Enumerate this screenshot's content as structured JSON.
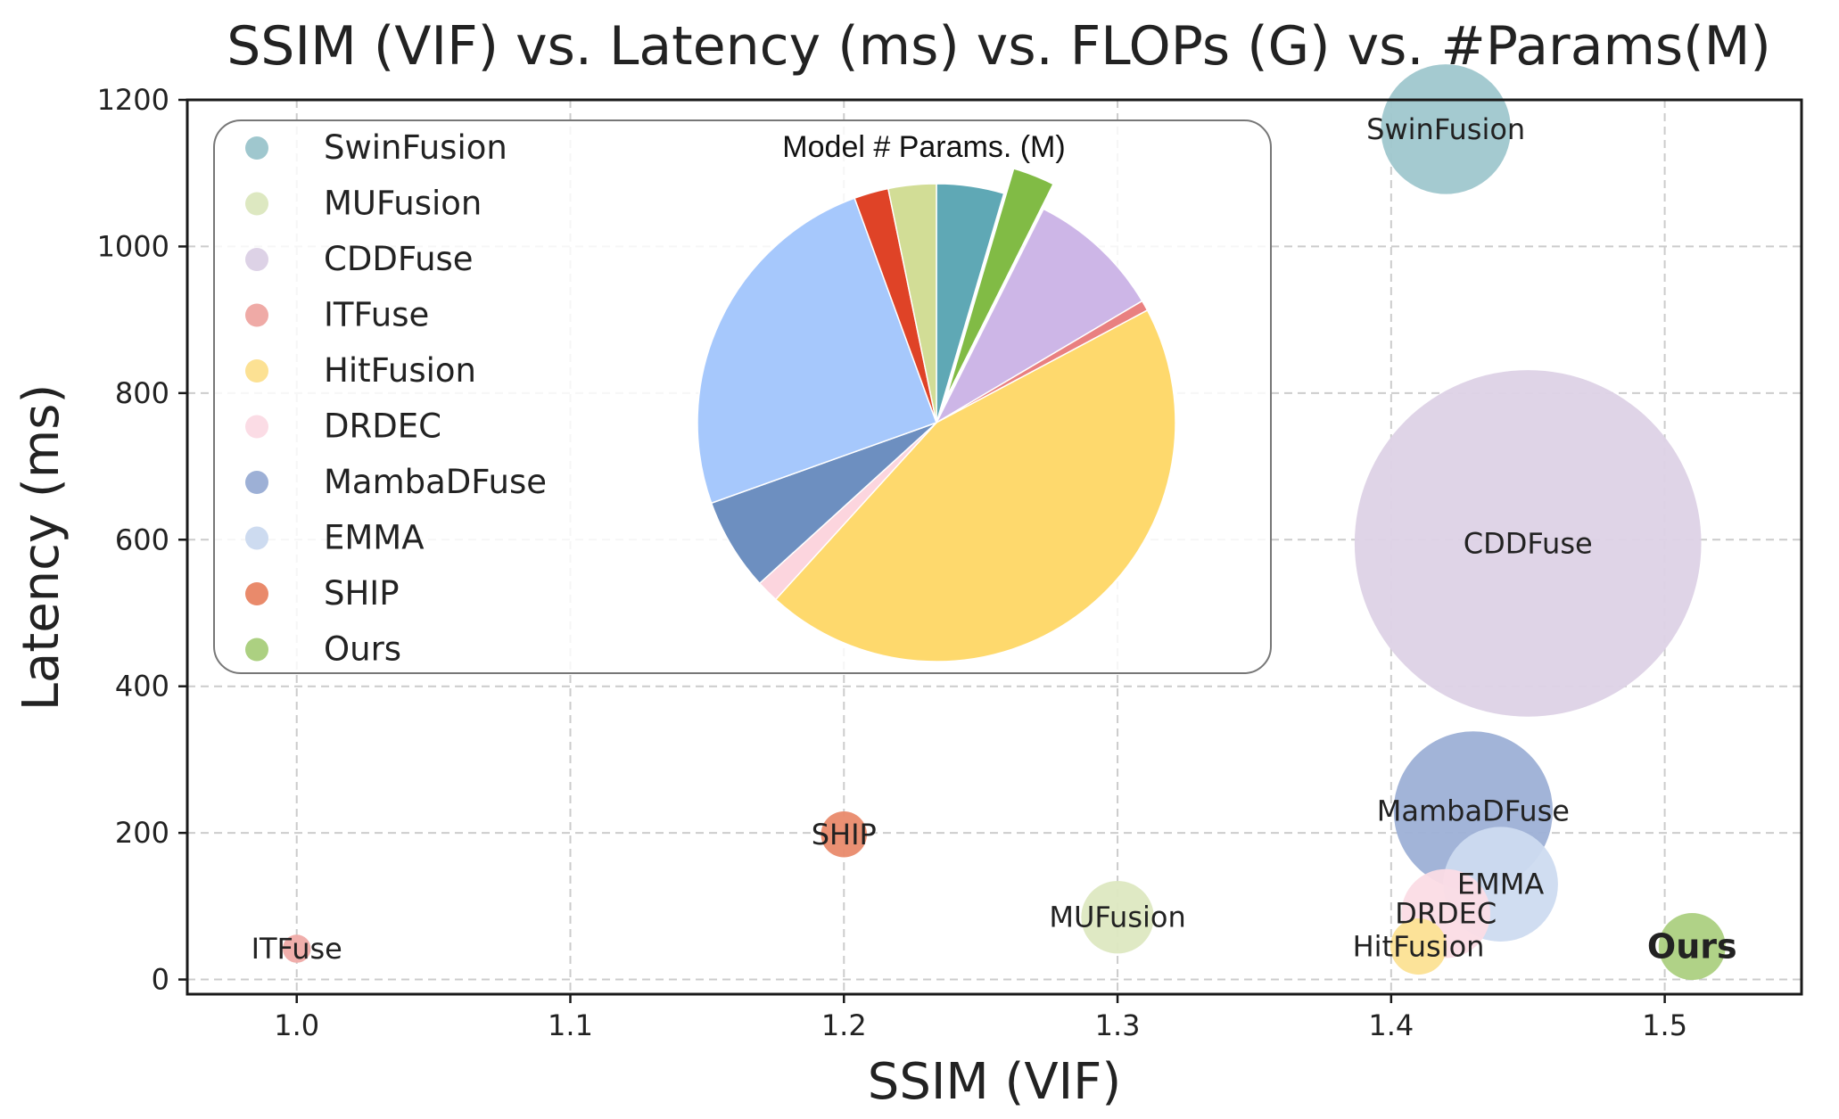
{
  "chart_data": {
    "type": "scatter",
    "title": "SSIM (VIF) vs. Latency (ms) vs. FLOPs (G) vs. #Params(M)",
    "xlabel": "SSIM (VIF)",
    "ylabel": "Latency (ms)",
    "xlim": [
      0.96,
      1.55
    ],
    "ylim": [
      -20,
      1200
    ],
    "xticks": [
      "1.0",
      "1.1",
      "1.2",
      "1.3",
      "1.4",
      "1.5"
    ],
    "xtick_values": [
      1.0,
      1.1,
      1.2,
      1.3,
      1.4,
      1.5
    ],
    "yticks": [
      "0",
      "200",
      "400",
      "600",
      "800",
      "1000",
      "1200"
    ],
    "ytick_values": [
      0,
      200,
      400,
      600,
      800,
      1000,
      1200
    ],
    "grid": true,
    "legend_position": "upper-left",
    "series": [
      {
        "name": "SwinFusion",
        "label": "SwinFusion",
        "x": 1.42,
        "y": 1160,
        "flops_g": 64,
        "color": "#9fc7ce",
        "label_color": "#222222"
      },
      {
        "name": "MUFusion",
        "label": "MUFusion",
        "x": 1.3,
        "y": 85,
        "flops_g": 20,
        "color": "#dde8c1",
        "label_color": "#222222"
      },
      {
        "name": "CDDFuse",
        "label": "CDDFuse",
        "x": 1.45,
        "y": 595,
        "flops_g": 456,
        "color": "#ddd2e6",
        "label_color": "#222222"
      },
      {
        "name": "ITFuse",
        "label": "ITFuse",
        "x": 1.0,
        "y": 42,
        "flops_g": 3,
        "color": "#efaaa6",
        "label_color": "#222222"
      },
      {
        "name": "HitFusion",
        "label": "HitFusion",
        "x": 1.41,
        "y": 45,
        "flops_g": 12,
        "color": "#fce193",
        "label_color": "#222222"
      },
      {
        "name": "DRDEC",
        "label": "DRDEC",
        "x": 1.42,
        "y": 90,
        "flops_g": 30,
        "color": "#fbdce5",
        "label_color": "#222222"
      },
      {
        "name": "MambaDFuse",
        "label": "MambaDFuse",
        "x": 1.43,
        "y": 230,
        "flops_g": 96,
        "color": "#9db0d6",
        "label_color": "#222222"
      },
      {
        "name": "EMMA",
        "label": "EMMA",
        "x": 1.44,
        "y": 130,
        "flops_g": 50,
        "color": "#cddbf0",
        "label_color": "#222222"
      },
      {
        "name": "SHIP",
        "label": "SHIP",
        "x": 1.2,
        "y": 198,
        "flops_g": 8,
        "color": "#e98a6b",
        "label_color": "#222222"
      },
      {
        "name": "Ours",
        "label": "Ours",
        "x": 1.51,
        "y": 45,
        "flops_g": 17,
        "color": "#acd081",
        "label_color": "#e8242b"
      }
    ],
    "pie": {
      "title": "Model # Params. (M)",
      "slices": [
        {
          "name": "SwinFusion",
          "value": 4.5,
          "color": "#5fa8b5",
          "explode": false
        },
        {
          "name": "Ours",
          "value": 2.8,
          "color": "#81bb45",
          "explode": true
        },
        {
          "name": "CDDFuse",
          "value": 9.0,
          "color": "#cdb6e7",
          "explode": false
        },
        {
          "name": "ITFuse",
          "value": 0.7,
          "color": "#e98080",
          "explode": false
        },
        {
          "name": "HitFusion",
          "value": 44.0,
          "color": "#fed96d",
          "explode": false
        },
        {
          "name": "DRDEC",
          "value": 1.5,
          "color": "#fcd5de",
          "explode": false
        },
        {
          "name": "MambaDFuse",
          "value": 6.2,
          "color": "#6d8fc0",
          "explode": false
        },
        {
          "name": "EMMA",
          "value": 24.6,
          "color": "#a6c8fc",
          "explode": false
        },
        {
          "name": "SHIP",
          "value": 2.3,
          "color": "#df4327",
          "explode": false
        },
        {
          "name": "MUFusion",
          "value": 3.2,
          "color": "#d2dd96",
          "explode": false
        }
      ]
    }
  }
}
